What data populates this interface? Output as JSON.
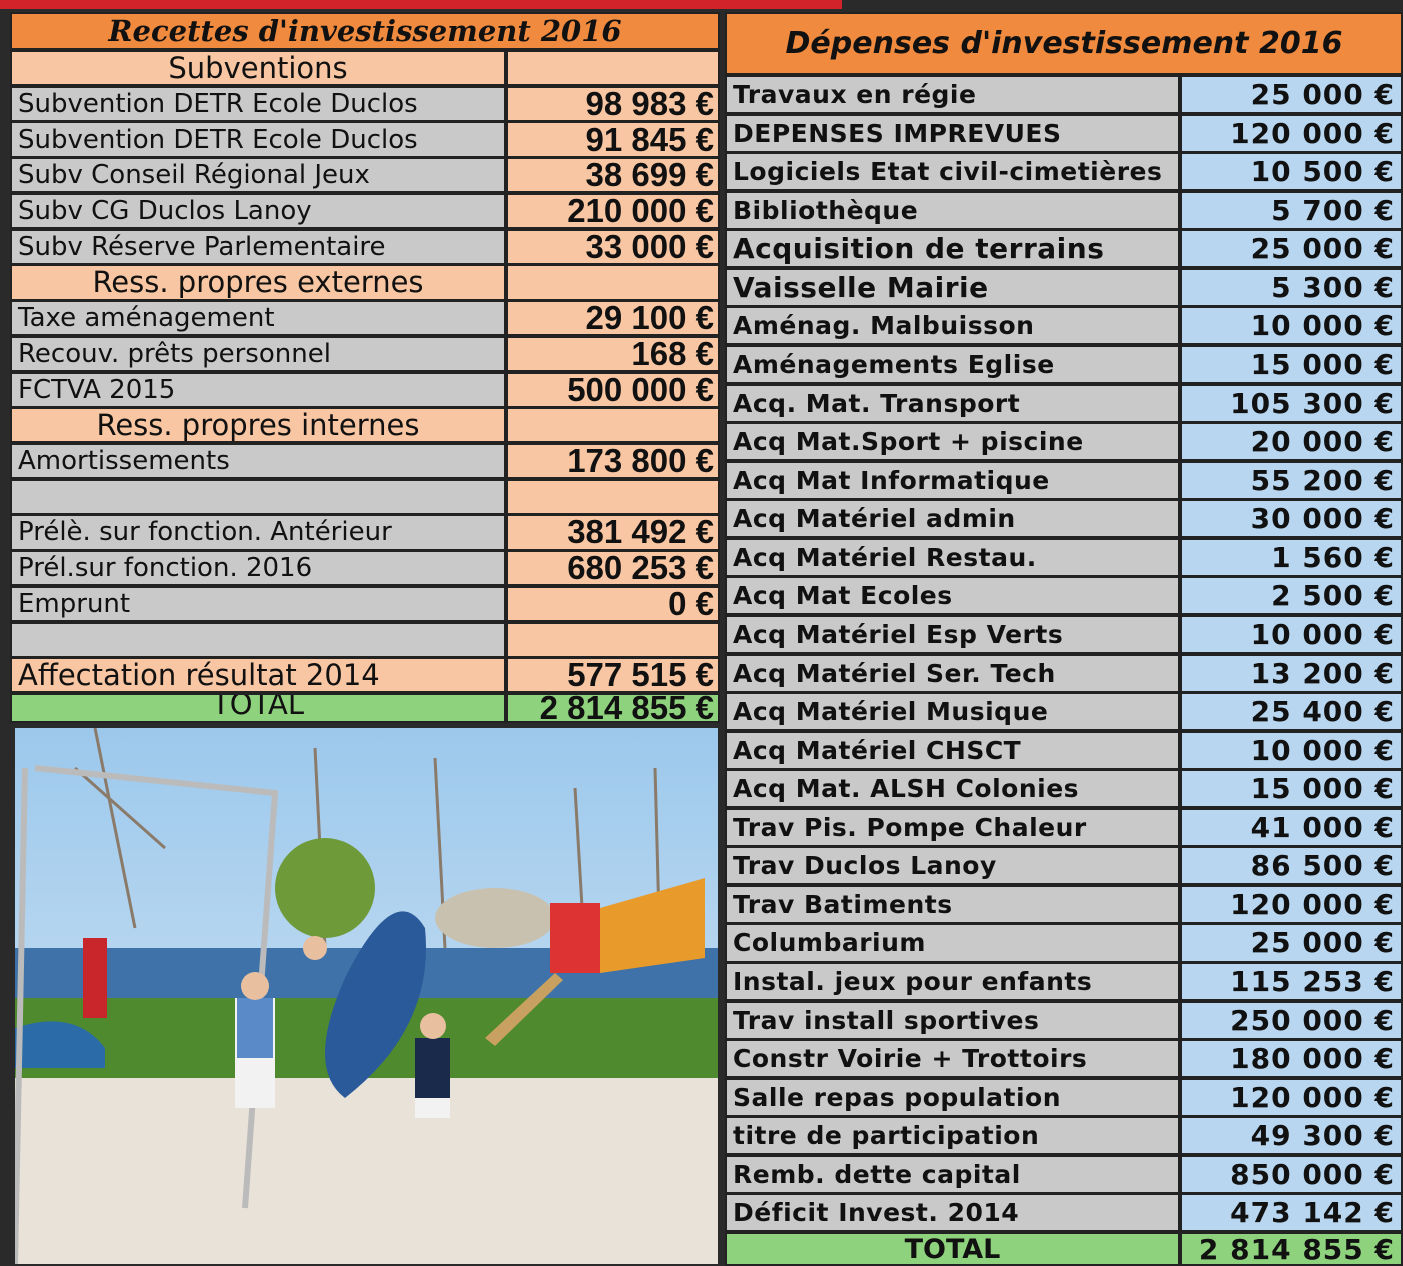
{
  "recettes": {
    "title": "Recettes d'investissement 2016",
    "rows": [
      {
        "section": "Subventions"
      },
      {
        "label": "Subvention DETR Ecole Duclos",
        "amount": "98 983 €"
      },
      {
        "label": "Subvention DETR Ecole Duclos",
        "amount": "91 845 €"
      },
      {
        "label": "Subv Conseil Régional Jeux",
        "amount": "38 699 €"
      },
      {
        "label": "Subv CG Duclos Lanoy",
        "amount": "210 000 €"
      },
      {
        "label": "Subv Réserve Parlementaire",
        "amount": "33 000 €"
      },
      {
        "section": "Ress. propres externes"
      },
      {
        "label": "Taxe aménagement",
        "amount": "29 100 €"
      },
      {
        "label": "Recouv. prêts personnel",
        "amount": "168 €"
      },
      {
        "label": "FCTVA 2015",
        "amount": "500 000 €"
      },
      {
        "section": "Ress. propres internes"
      },
      {
        "label": "Amortissements",
        "amount": "173 800 €"
      },
      null,
      {
        "label": "Prélè. sur fonction. Antérieur",
        "amount": "381 492 €"
      },
      {
        "label": "Prél.sur fonction.  2016",
        "amount": "680 253 €"
      },
      {
        "label": "Emprunt",
        "amount": "0 €"
      },
      null,
      {
        "label": "Affectation résultat 2014",
        "amount": "577 515 €"
      }
    ],
    "total": {
      "label": "TOTAL",
      "amount": "2 814 855 €"
    }
  },
  "depenses": {
    "title": "Dépenses d'investissement 2016",
    "rows": [
      {
        "label": "Travaux en régie",
        "amount": "25 000 €"
      },
      {
        "label": "DEPENSES IMPREVUES",
        "amount": "120 000 €"
      },
      {
        "label": "Logiciels Etat civil-cimetières",
        "amount": "10 500 €"
      },
      {
        "label": "Bibliothèque",
        "amount": "5 700 €"
      },
      {
        "label": "Acquisition de terrains",
        "amount": "25 000 €"
      },
      {
        "label": "Vaisselle Mairie",
        "amount": "5 300 €"
      },
      {
        "label": "Aménag. Malbuisson",
        "amount": "10 000 €"
      },
      {
        "label": "Aménagements Eglise",
        "amount": "15 000 €"
      },
      {
        "label": "Acq. Mat. Transport",
        "amount": "105 300 €"
      },
      {
        "label": "Acq Mat.Sport + piscine",
        "amount": "20 000 €"
      },
      {
        "label": "Acq Mat Informatique",
        "amount": "55 200 €"
      },
      {
        "label": "Acq Matériel admin",
        "amount": "30 000 €"
      },
      {
        "label": "Acq Matériel Restau.",
        "amount": "1 560 €"
      },
      {
        "label": "Acq Mat Ecoles",
        "amount": "2 500 €"
      },
      {
        "label": "Acq Matériel Esp Verts",
        "amount": "10 000 €"
      },
      {
        "label": "Acq Matériel Ser. Tech",
        "amount": "13 200 €"
      },
      {
        "label": "Acq Matériel Musique",
        "amount": "25 400 €"
      },
      {
        "label": "Acq Matériel CHSCT",
        "amount": "10 000 €"
      },
      {
        "label": "Acq Mat. ALSH Colonies",
        "amount": "15 000 €"
      },
      {
        "label": "Trav Pis. Pompe Chaleur",
        "amount": "41 000 €"
      },
      {
        "label": "Trav Duclos Lanoy",
        "amount": "86 500 €"
      },
      {
        "label": "Trav Batiments",
        "amount": "120 000 €"
      },
      {
        "label": " Columbarium",
        "amount": "25 000 €"
      },
      {
        "label": "Instal. jeux pour enfants",
        "amount": "115 253 €"
      },
      {
        "label": "Trav install sportives",
        "amount": "250 000 €"
      },
      {
        "label": "Constr Voirie + Trottoirs",
        "amount": "180 000 €"
      },
      {
        "label": "Salle repas population",
        "amount": "120 000 €"
      },
      {
        "label": "titre de participation",
        "amount": "49 300 €"
      },
      {
        "label": "Remb. dette capital",
        "amount": "850 000 €"
      },
      {
        "label": "Déficit Invest. 2014",
        "amount": "473 142 €"
      }
    ],
    "total": {
      "label": "TOTAL",
      "amount": "2 814 855 €"
    }
  }
}
